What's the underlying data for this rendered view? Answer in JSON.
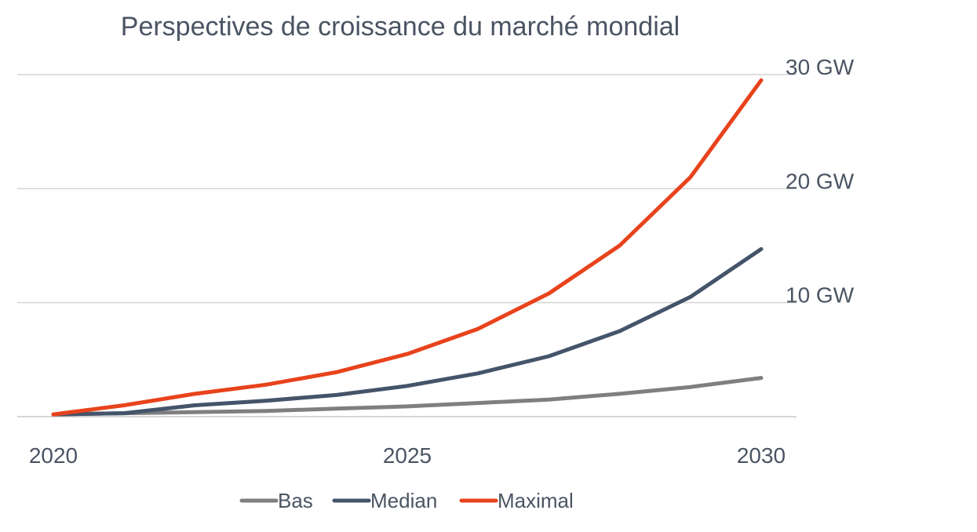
{
  "chart_data": {
    "type": "line",
    "title": "Perspectives de croissance du marché mondial",
    "xlabel": "",
    "ylabel": "",
    "x": [
      2020,
      2021,
      2022,
      2023,
      2024,
      2025,
      2026,
      2027,
      2028,
      2029,
      2030
    ],
    "x_tick_values": [
      2020,
      2025,
      2030
    ],
    "x_tick_labels": [
      "2020",
      "2025",
      "2030"
    ],
    "ylim": [
      0,
      30
    ],
    "y_tick_values": [
      10,
      20,
      30
    ],
    "y_tick_labels": [
      "10 GW",
      "20 GW",
      "30 GW"
    ],
    "y_axis_position": "right",
    "grid": true,
    "legend_position": "bottom-center",
    "series": [
      {
        "name": "Bas",
        "color": "#7f7f7f",
        "values": [
          0.2,
          0.3,
          0.4,
          0.5,
          0.7,
          0.9,
          1.2,
          1.5,
          2.0,
          2.6,
          3.4
        ]
      },
      {
        "name": "Median",
        "color": "#44546a",
        "values": [
          0.2,
          0.3,
          1.0,
          1.4,
          1.9,
          2.7,
          3.8,
          5.3,
          7.5,
          10.5,
          14.7
        ]
      },
      {
        "name": "Maximal",
        "color": "#e8431c",
        "values": [
          0.2,
          1.0,
          2.0,
          2.8,
          3.9,
          5.5,
          7.7,
          10.8,
          15.0,
          21.0,
          29.5
        ]
      }
    ]
  }
}
